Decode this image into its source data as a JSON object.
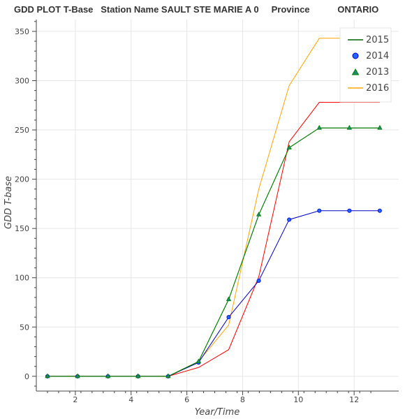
{
  "chart_data": {
    "type": "line",
    "title": "GDD PLOT T-Base   Station Name SAULT STE MARIE A 0     Province           ONTARIO",
    "xlabel": "Year/Time",
    "ylabel": "GDD T-base",
    "xlim": [
      0.6,
      13.6
    ],
    "ylim": [
      -15,
      362
    ],
    "x_ticks": [
      2,
      4,
      6,
      8,
      10,
      12
    ],
    "y_ticks": [
      0,
      50,
      100,
      150,
      200,
      250,
      300,
      350
    ],
    "grid": true,
    "legend_position": "top-right",
    "series": [
      {
        "name": "2015",
        "color": "#006400",
        "marker": "line",
        "x": [
          1.0,
          2.08,
          3.17,
          4.25,
          5.33,
          6.42,
          7.5,
          8.58,
          9.67,
          10.75,
          11.83,
          12.92
        ],
        "y": [
          0,
          0,
          0,
          0,
          0,
          15,
          78,
          164,
          232,
          252,
          252,
          252
        ]
      },
      {
        "name": "2014",
        "color": "#0000cd",
        "marker": "circle",
        "x": [
          1.0,
          2.08,
          3.17,
          4.25,
          5.33,
          6.42,
          7.5,
          8.58,
          9.67,
          10.75,
          11.83,
          12.92
        ],
        "y": [
          0,
          0,
          0,
          0,
          0,
          14,
          60,
          97,
          159,
          168,
          168,
          168
        ]
      },
      {
        "name": "2013",
        "color": "#008000",
        "marker": "triangle",
        "x": [
          1.0,
          2.08,
          3.17,
          4.25,
          5.33,
          6.42,
          7.5,
          8.58,
          9.67,
          10.75,
          11.83,
          12.92
        ],
        "y": [
          0,
          0,
          0,
          0,
          0,
          15,
          78,
          164,
          232,
          252,
          252,
          252
        ]
      },
      {
        "name": "2016",
        "color": "#ffa500",
        "marker": "line",
        "x": [
          1.0,
          2.08,
          3.17,
          4.25,
          5.33,
          6.42,
          7.5,
          8.58,
          9.67,
          10.75,
          11.83,
          12.92
        ],
        "y": [
          0,
          0,
          0,
          0,
          0,
          15,
          52,
          190,
          295,
          343,
          343,
          343
        ]
      },
      {
        "name": "",
        "color": "#ff0000",
        "marker": "line",
        "x": [
          1.0,
          2.08,
          3.17,
          4.25,
          5.33,
          6.42,
          7.5,
          8.58,
          9.67,
          10.75,
          11.83,
          12.92
        ],
        "y": [
          0,
          0,
          0,
          0,
          0,
          9,
          27,
          101,
          238,
          278,
          278,
          278
        ]
      }
    ]
  },
  "legend": {
    "items": [
      "2015",
      "2014",
      "2013",
      "2016"
    ]
  },
  "colors": {
    "grid": "#e6e6e6",
    "axis": "#444444",
    "legend_border": "#e5e5e5"
  }
}
